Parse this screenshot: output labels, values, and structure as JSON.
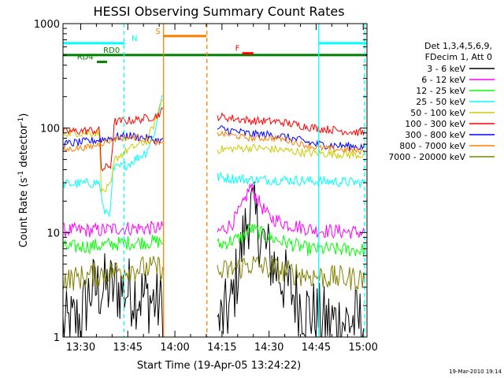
{
  "chart_data": {
    "type": "line",
    "title": "HESSI Observing Summary Count Rates",
    "xlabel": "Start Time (19-Apr-05 13:24:22)",
    "ylabel": "Count Rate (s",
    "ylabel_sup": "-1",
    "ylabel_mid": " detector",
    "ylabel_sup2": "-1",
    "ylabel_end": ")",
    "yscale": "log",
    "ylim": [
      1,
      1000
    ],
    "xlim": [
      13.406,
      15.02
    ],
    "x_ticks": [
      {
        "t": 13.5,
        "label": "13:30"
      },
      {
        "t": 13.75,
        "label": "13:45"
      },
      {
        "t": 14.0,
        "label": "14:00"
      },
      {
        "t": 14.25,
        "label": "14:15"
      },
      {
        "t": 14.5,
        "label": "14:30"
      },
      {
        "t": 14.75,
        "label": "14:45"
      },
      {
        "t": 15.0,
        "label": "15:00"
      }
    ],
    "y_ticks": [
      {
        "v": 1,
        "label": "1"
      },
      {
        "v": 10,
        "label": "10"
      },
      {
        "v": 100,
        "label": "100"
      },
      {
        "v": 1000,
        "label": "1000"
      }
    ],
    "legend_header": [
      "Det 1,3,4,5,6,9,",
      "FDecim 1, Att 0"
    ],
    "legend_placement": "right",
    "data_gaps": [
      [
        13.94,
        14.22
      ]
    ],
    "series": [
      {
        "name": "3 - 6 keV",
        "color": "#000000",
        "noise": 0.35,
        "points": [
          [
            13.406,
            1.2
          ],
          [
            13.5,
            1.5
          ],
          [
            13.55,
            2.8
          ],
          [
            13.65,
            3.0
          ],
          [
            13.75,
            2.8
          ],
          [
            13.85,
            2.4
          ],
          [
            13.93,
            2.0
          ],
          [
            14.22,
            1.2
          ],
          [
            14.3,
            2.0
          ],
          [
            14.36,
            8.0
          ],
          [
            14.4,
            18.0
          ],
          [
            14.45,
            10.0
          ],
          [
            14.5,
            6.0
          ],
          [
            14.6,
            3.0
          ],
          [
            14.7,
            1.8
          ],
          [
            14.8,
            1.4
          ],
          [
            15.0,
            1.4
          ]
        ]
      },
      {
        "name": "6 - 12 keV",
        "color": "#ff00ff",
        "noise": 0.07,
        "points": [
          [
            13.406,
            10.5
          ],
          [
            13.6,
            10.5
          ],
          [
            13.7,
            11.0
          ],
          [
            13.9,
            11.0
          ],
          [
            13.93,
            11.0
          ],
          [
            14.22,
            10.0
          ],
          [
            14.3,
            12.0
          ],
          [
            14.36,
            18.0
          ],
          [
            14.4,
            28.0
          ],
          [
            14.45,
            19.0
          ],
          [
            14.5,
            14.0
          ],
          [
            14.6,
            12.0
          ],
          [
            14.75,
            10.5
          ],
          [
            15.0,
            10.0
          ]
        ]
      },
      {
        "name": "12 - 25 keV",
        "color": "#00ff00",
        "noise": 0.07,
        "points": [
          [
            13.406,
            7.2
          ],
          [
            13.6,
            7.5
          ],
          [
            13.75,
            8.0
          ],
          [
            13.93,
            8.2
          ],
          [
            14.22,
            7.5
          ],
          [
            14.36,
            9.0
          ],
          [
            14.4,
            11.0
          ],
          [
            14.5,
            9.0
          ],
          [
            14.7,
            7.0
          ],
          [
            15.0,
            6.8
          ]
        ]
      },
      {
        "name": "25 - 50 keV",
        "color": "#00ffff",
        "noise": 0.05,
        "points": [
          [
            13.406,
            29.0
          ],
          [
            13.6,
            30.0
          ],
          [
            13.62,
            16.0
          ],
          [
            13.66,
            16.0
          ],
          [
            13.67,
            40.0
          ],
          [
            13.75,
            45.0
          ],
          [
            13.85,
            60.0
          ],
          [
            13.9,
            100.0
          ],
          [
            13.93,
            210.0
          ],
          [
            14.22,
            34.0
          ],
          [
            14.4,
            32.0
          ],
          [
            14.6,
            32.0
          ],
          [
            14.75,
            31.0
          ],
          [
            15.0,
            30.0
          ]
        ]
      },
      {
        "name": "50 - 100 keV",
        "color": "#cccc00",
        "noise": 0.04,
        "points": [
          [
            13.406,
            90.0
          ],
          [
            13.6,
            90.0
          ],
          [
            13.61,
            24.0
          ],
          [
            13.66,
            28.0
          ],
          [
            13.68,
            50.0
          ],
          [
            13.75,
            62.0
          ],
          [
            13.85,
            75.0
          ],
          [
            13.9,
            120.0
          ],
          [
            13.93,
            190.0
          ],
          [
            14.22,
            62.0
          ],
          [
            14.4,
            65.0
          ],
          [
            14.55,
            62.0
          ],
          [
            14.7,
            58.0
          ],
          [
            15.0,
            55.0
          ]
        ]
      },
      {
        "name": "100 - 300 keV",
        "color": "#ff0000",
        "noise": 0.04,
        "points": [
          [
            13.406,
            92.0
          ],
          [
            13.55,
            95.0
          ],
          [
            13.6,
            95.0
          ],
          [
            13.61,
            40.0
          ],
          [
            13.66,
            44.0
          ],
          [
            13.68,
            115.0
          ],
          [
            13.8,
            120.0
          ],
          [
            13.9,
            130.0
          ],
          [
            13.93,
            145.0
          ],
          [
            14.22,
            130.0
          ],
          [
            14.4,
            118.0
          ],
          [
            14.55,
            115.0
          ],
          [
            14.75,
            100.0
          ],
          [
            15.0,
            90.0
          ]
        ]
      },
      {
        "name": "300 - 800 keV",
        "color": "#0000ff",
        "noise": 0.04,
        "points": [
          [
            13.406,
            70.0
          ],
          [
            13.55,
            75.0
          ],
          [
            13.65,
            80.0
          ],
          [
            13.75,
            85.0
          ],
          [
            13.85,
            80.0
          ],
          [
            13.93,
            75.0
          ],
          [
            14.22,
            100.0
          ],
          [
            14.4,
            88.0
          ],
          [
            14.55,
            85.0
          ],
          [
            14.75,
            70.0
          ],
          [
            15.0,
            66.0
          ]
        ]
      },
      {
        "name": "800 - 7000 keV",
        "color": "#ff8000",
        "noise": 0.03,
        "points": [
          [
            13.406,
            62.0
          ],
          [
            13.55,
            66.0
          ],
          [
            13.7,
            80.0
          ],
          [
            13.8,
            82.0
          ],
          [
            13.93,
            70.0
          ],
          [
            14.22,
            90.0
          ],
          [
            14.4,
            80.0
          ],
          [
            14.55,
            80.0
          ],
          [
            14.75,
            65.0
          ],
          [
            15.0,
            60.0
          ]
        ]
      },
      {
        "name": "7000 - 20000 keV",
        "color": "#808000",
        "noise": 0.12,
        "points": [
          [
            13.406,
            3.5
          ],
          [
            13.6,
            4.0
          ],
          [
            13.75,
            4.5
          ],
          [
            13.93,
            4.6
          ],
          [
            14.22,
            4.0
          ],
          [
            14.4,
            5.0
          ],
          [
            14.6,
            4.2
          ],
          [
            14.75,
            3.8
          ],
          [
            15.0,
            3.6
          ]
        ]
      }
    ],
    "flags": [
      {
        "label": "N",
        "color": "#00ffff",
        "y": 650,
        "segments": [
          [
            13.406,
            13.733
          ],
          [
            14.767,
            15.02
          ]
        ],
        "label_t": 13.77
      },
      {
        "label": "RD0",
        "color": "#008000",
        "y": 500,
        "segments": [
          [
            13.406,
            15.02
          ]
        ],
        "label_t": 13.62
      },
      {
        "label": "RD4",
        "color": "#008000",
        "y": 430,
        "segments": [
          [
            13.586,
            13.64
          ]
        ],
        "label_t": 13.48
      },
      {
        "label": "S",
        "color": "#ff8000",
        "y": 760,
        "segments": [
          [
            13.94,
            14.167
          ]
        ],
        "label_t": 13.897
      },
      {
        "label": "F",
        "color": "#ff0000",
        "y": 520,
        "segments": [
          [
            14.358,
            14.417
          ]
        ],
        "label_t": 14.32
      }
    ],
    "vlines": [
      {
        "t": 13.73,
        "color": "#00ffff",
        "dashed": true
      },
      {
        "t": 13.94,
        "color": "#ff8000",
        "dashed": false
      },
      {
        "t": 14.17,
        "color": "#ff8000",
        "dashed": true
      },
      {
        "t": 14.764,
        "color": "#00ffff",
        "dashed": false
      },
      {
        "t": 15.007,
        "color": "#00ffff",
        "dashed": true
      }
    ],
    "footer_timestamp": "19-Mar-2010 19:14"
  }
}
